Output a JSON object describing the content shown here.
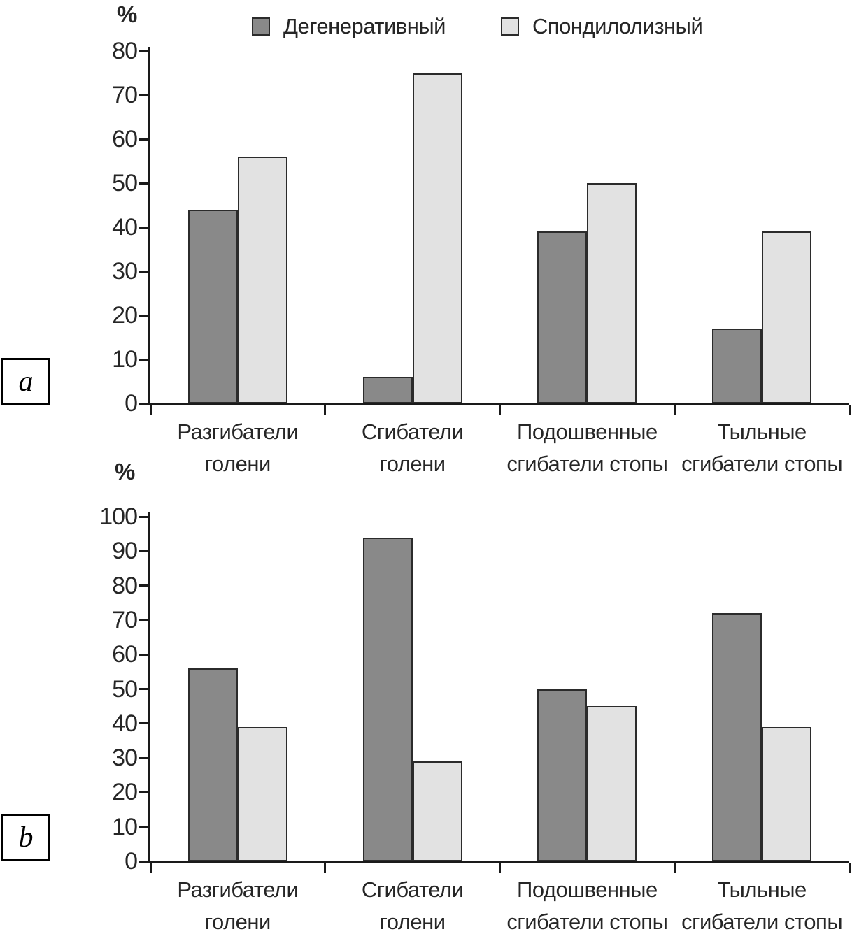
{
  "colors": {
    "axis": "#1a1a1a",
    "text": "#262626",
    "bar_border": "#2b2b2b",
    "degenerative_fill": "#898989",
    "spondylolytic_fill": "#e2e2e2",
    "background": "#ffffff"
  },
  "chart_data": [
    {
      "type": "bar",
      "panel_label": "a",
      "ylabel": "%",
      "ylim": [
        0,
        80
      ],
      "ytick_step": 10,
      "ytick_labels": [
        "0",
        "10",
        "20",
        "30",
        "40",
        "50",
        "60",
        "70",
        "80"
      ],
      "grid": false,
      "legend_position": "top",
      "categories": [
        "Разгибатели\nголени",
        "Сгибатели\nголени",
        "Подошвенные\nсгибатели стопы",
        "Тыльные\nсгибатели стопы"
      ],
      "series": [
        {
          "name": "Дегенеративный",
          "color": "#898989",
          "values": [
            44,
            6,
            39,
            17
          ]
        },
        {
          "name": "Спондилолизный",
          "color": "#e2e2e2",
          "values": [
            56,
            75,
            50,
            39
          ]
        }
      ]
    },
    {
      "type": "bar",
      "panel_label": "b",
      "ylabel": "%",
      "ylim": [
        0,
        100
      ],
      "ytick_step": 10,
      "ytick_labels": [
        "0",
        "10",
        "20",
        "30",
        "40",
        "50",
        "60",
        "70",
        "80",
        "90",
        "100"
      ],
      "grid": false,
      "legend_position": "none",
      "categories": [
        "Разгибатели\nголени",
        "Сгибатели\nголени",
        "Подошвенные\nсгибатели стопы",
        "Тыльные\nсгибатели стопы"
      ],
      "series": [
        {
          "name": "Дегенеративный",
          "color": "#898989",
          "values": [
            56,
            94,
            50,
            72
          ]
        },
        {
          "name": "Спондилолизный",
          "color": "#e2e2e2",
          "values": [
            39,
            29,
            45,
            39
          ]
        }
      ]
    }
  ]
}
